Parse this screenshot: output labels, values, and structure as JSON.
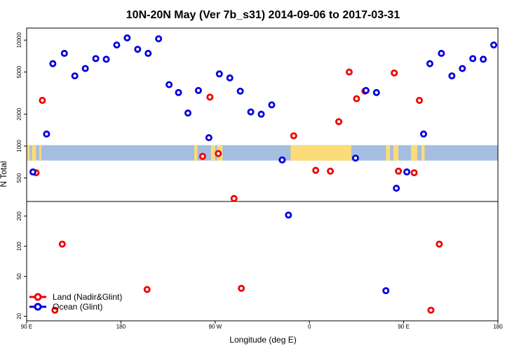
{
  "colors": {
    "land": "#ee0000",
    "ocean": "#0000dd",
    "map_water": "#a4bde0",
    "map_land": "#fbdc78",
    "frame": "#000000"
  },
  "chart_data": {
    "type": "scatter",
    "title": "10N-20N May (Ver 7b_s31)   2014-09-06 to 2017-03-31",
    "xlabel": "Longitude (deg E)",
    "ylabel": "N Total",
    "x_ticks": [
      {
        "lon": 90,
        "label": "90 E"
      },
      {
        "lon": 180,
        "label": "180"
      },
      {
        "lon": 270,
        "label": "90 W"
      },
      {
        "lon": 360,
        "label": "0"
      },
      {
        "lon": 450,
        "label": "90 E"
      },
      {
        "lon": 540,
        "label": "180"
      }
    ],
    "xlim": [
      90,
      540
    ],
    "y_scale": "log (broken axis)",
    "upper_panel": {
      "ylim": [
        300,
        13000
      ],
      "ticks": [
        500,
        1000,
        2000,
        5000,
        10000
      ]
    },
    "lower_panel": {
      "ylim": [
        18,
        280
      ],
      "ticks": [
        20,
        50,
        100,
        200
      ]
    },
    "map_band_range": [
      730,
      1020
    ],
    "grid": false,
    "legend_position": "bottom-left",
    "series": [
      {
        "name": "Land (Nadir&Glint)",
        "color_key": "land",
        "points": [
          {
            "x": 99,
            "y": 560
          },
          {
            "x": 105,
            "y": 2700
          },
          {
            "x": 117,
            "y": 23
          },
          {
            "x": 124,
            "y": 105
          },
          {
            "x": 205,
            "y": 37
          },
          {
            "x": 258,
            "y": 800
          },
          {
            "x": 265,
            "y": 2900
          },
          {
            "x": 273,
            "y": 850
          },
          {
            "x": 288,
            "y": 320
          },
          {
            "x": 295,
            "y": 38
          },
          {
            "x": 345,
            "y": 1250
          },
          {
            "x": 366,
            "y": 590
          },
          {
            "x": 380,
            "y": 580
          },
          {
            "x": 388,
            "y": 1700
          },
          {
            "x": 398,
            "y": 5000
          },
          {
            "x": 405,
            "y": 2800
          },
          {
            "x": 413,
            "y": 3300
          },
          {
            "x": 441,
            "y": 4900
          },
          {
            "x": 445,
            "y": 580
          },
          {
            "x": 460,
            "y": 560
          },
          {
            "x": 465,
            "y": 2700
          },
          {
            "x": 476,
            "y": 23
          },
          {
            "x": 484,
            "y": 105
          }
        ]
      },
      {
        "name": "Ocean (Glint)",
        "color_key": "ocean",
        "points": [
          {
            "x": 96,
            "y": 570
          },
          {
            "x": 109,
            "y": 1300
          },
          {
            "x": 115,
            "y": 6000
          },
          {
            "x": 126,
            "y": 7500
          },
          {
            "x": 136,
            "y": 4600
          },
          {
            "x": 146,
            "y": 5400
          },
          {
            "x": 156,
            "y": 6700
          },
          {
            "x": 166,
            "y": 6600
          },
          {
            "x": 176,
            "y": 9000
          },
          {
            "x": 186,
            "y": 10500
          },
          {
            "x": 196,
            "y": 8200
          },
          {
            "x": 206,
            "y": 7500
          },
          {
            "x": 216,
            "y": 10300
          },
          {
            "x": 226,
            "y": 3800
          },
          {
            "x": 235,
            "y": 3200
          },
          {
            "x": 244,
            "y": 2050
          },
          {
            "x": 254,
            "y": 3350
          },
          {
            "x": 264,
            "y": 1200
          },
          {
            "x": 274,
            "y": 4800
          },
          {
            "x": 284,
            "y": 4400
          },
          {
            "x": 294,
            "y": 3300
          },
          {
            "x": 304,
            "y": 2100
          },
          {
            "x": 314,
            "y": 2000
          },
          {
            "x": 324,
            "y": 2450
          },
          {
            "x": 334,
            "y": 740
          },
          {
            "x": 340,
            "y": 205
          },
          {
            "x": 404,
            "y": 770
          },
          {
            "x": 414,
            "y": 3350
          },
          {
            "x": 424,
            "y": 3200
          },
          {
            "x": 433,
            "y": 36
          },
          {
            "x": 443,
            "y": 400
          },
          {
            "x": 453,
            "y": 570
          },
          {
            "x": 469,
            "y": 1300
          },
          {
            "x": 475,
            "y": 6000
          },
          {
            "x": 486,
            "y": 7500
          },
          {
            "x": 496,
            "y": 4600
          },
          {
            "x": 506,
            "y": 5400
          },
          {
            "x": 516,
            "y": 6700
          },
          {
            "x": 526,
            "y": 6600
          },
          {
            "x": 536,
            "y": 9000
          }
        ]
      }
    ]
  }
}
